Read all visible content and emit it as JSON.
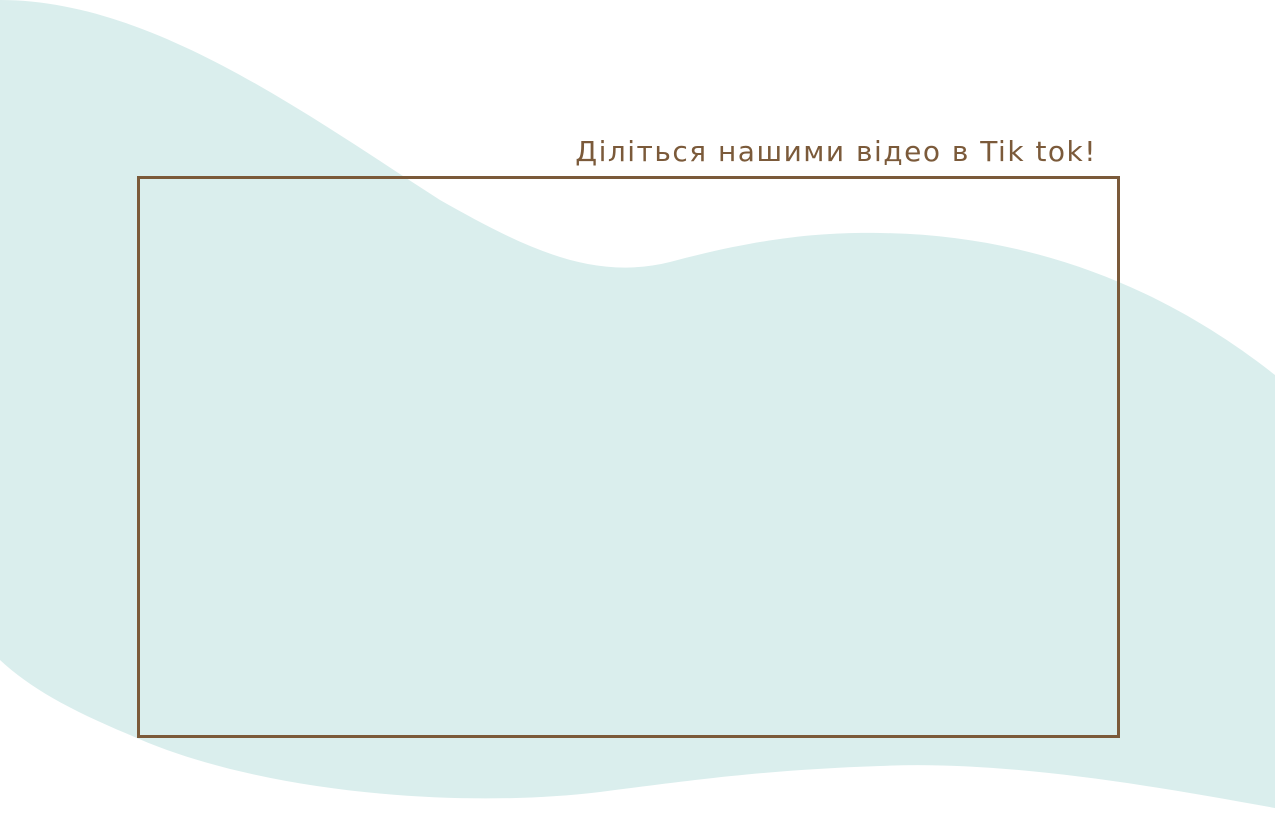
{
  "heading": {
    "text": "Діліться нашими відео в Tik tok!"
  },
  "video_embed": {
    "icon": "video-frame-icon"
  },
  "colors": {
    "accent": "#7b5a3a",
    "wave": "#daeeed",
    "background": "#ffffff"
  }
}
